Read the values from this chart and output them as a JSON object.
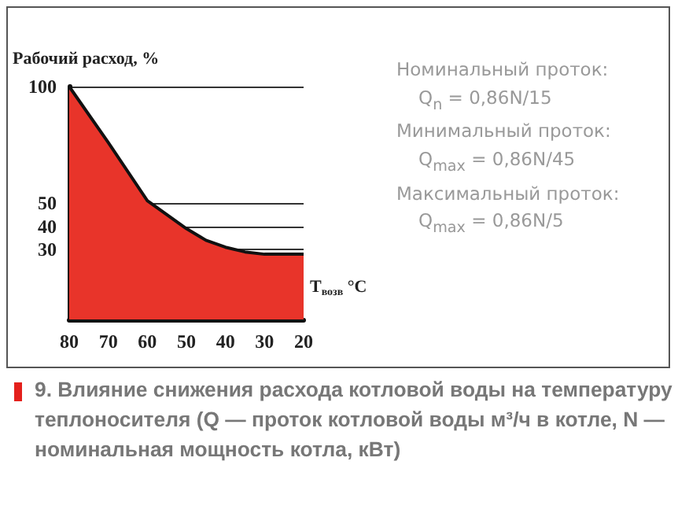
{
  "chart_data": {
    "type": "area",
    "ylabel": "Рабочий расход, %",
    "xlabel": "T$_{возв}$ °C",
    "x": [
      80,
      70,
      60,
      50,
      45,
      40,
      35,
      30,
      20
    ],
    "series": [
      {
        "color": "#e8342a",
        "values": [
          100,
          76,
          51,
          39,
          34,
          31,
          29,
          28,
          28
        ]
      }
    ],
    "xlim": [
      80,
      20
    ],
    "xticks": [
      80,
      70,
      60,
      50,
      40,
      30,
      20
    ],
    "ylim": [
      0,
      100
    ],
    "yticks": [
      30,
      40,
      50,
      100
    ],
    "grid": "y",
    "annotations": [
      "Номинальный проток:",
      "Q$_{n}$ = 0,86N/15",
      "Минимальный проток:",
      "Q$_{max}$ = 0,86N/45",
      "Максимальный проток:",
      "Q$_{max}$ = 0,86N/5",
      "9. Влияние снижения расхода котловой воды на температуру теплоносителя (Q — проток котловой воды м³/ч в котле, N — номинальная мощность котла, кВт)"
    ]
  }
}
